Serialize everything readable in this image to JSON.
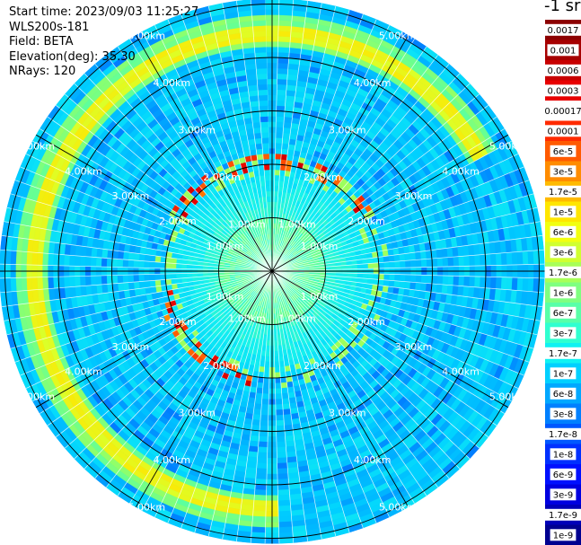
{
  "info": {
    "start_time": "Start time: 2023/09/03 11:25:27",
    "instrument": "WLS200s-181",
    "field": "Field: BETA",
    "elevation": "Elevation(deg): 35.30",
    "nrays": "NRays: 120"
  },
  "colorbar": {
    "unit_label": "-1 sr",
    "ticks": [
      "0.0017",
      "0.001",
      "0.0006",
      "0.0003",
      "0.00017",
      "0.0001",
      "6e-5",
      "3e-5",
      "1.7e-5",
      "1e-5",
      "6e-6",
      "3e-6",
      "1.7e-6",
      "1e-6",
      "6e-7",
      "3e-7",
      "1.7e-7",
      "1e-7",
      "6e-8",
      "3e-8",
      "1.7e-8",
      "1e-8",
      "6e-9",
      "3e-9",
      "1.7e-9",
      "1e-9"
    ],
    "colors": [
      "#8c0000",
      "#a60000",
      "#c80000",
      "#e80000",
      "#ffffff",
      "#ff2a00",
      "#ff5a00",
      "#ff8c00",
      "#ffba00",
      "#ffe600",
      "#f2ff10",
      "#d0ff30",
      "#a8ff58",
      "#7fff80",
      "#58ffa8",
      "#30ffd0",
      "#10f2f2",
      "#00d0ff",
      "#00a8ff",
      "#0080ff",
      "#0058ff",
      "#0030ff",
      "#0010ff",
      "#0000e0",
      "#0000b8",
      "#000090"
    ]
  },
  "chart_data": {
    "type": "heatmap",
    "subtype": "ppi-polar",
    "title": "",
    "field": "BETA",
    "nrays": 120,
    "range_rings_km": [
      1,
      2,
      3,
      4,
      5
    ],
    "range_labels": [
      "1.00km",
      "2.00km",
      "3.00km",
      "4.00km",
      "5.00km"
    ],
    "max_range_km": 5.1,
    "spokes_deg_step": 30,
    "background_level": "1e-8 to 3e-8 (blue)",
    "near_range_level": "1e-7 (cyan)",
    "ring_feature": {
      "range_km": 4.5,
      "level": "1e-5 to 6e-6 (yellow)",
      "azimuth_extent_deg": [
        0,
        240
      ]
    },
    "hot_spots_level": "3e-5 to 1e-4 (orange-red)"
  }
}
